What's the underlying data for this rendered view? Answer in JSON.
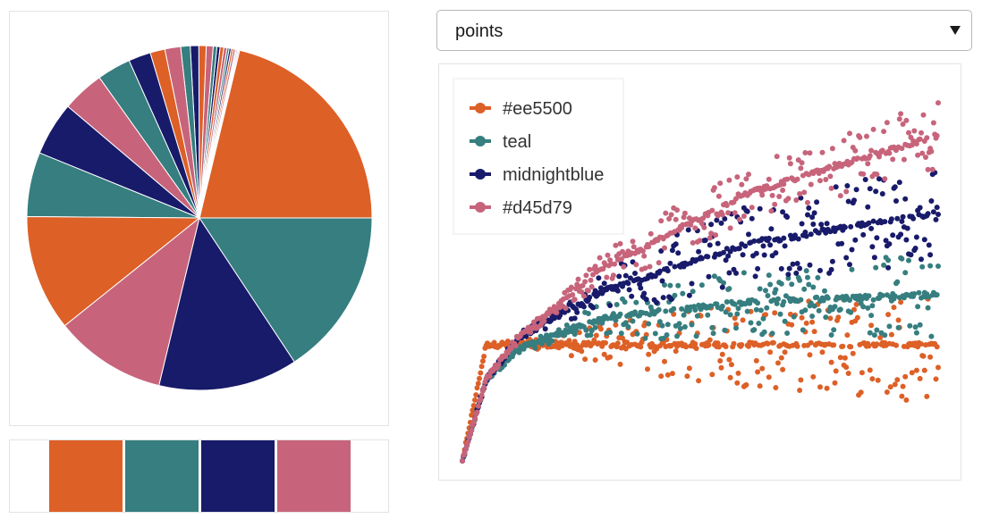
{
  "dropdown": {
    "selected": "points"
  },
  "palette": [
    {
      "name": "#ee5500",
      "color": "#dd6027"
    },
    {
      "name": "teal",
      "color": "#367e7f"
    },
    {
      "name": "midnightblue",
      "color": "#181a6a"
    },
    {
      "name": "#d45d79",
      "color": "#c7647b"
    }
  ],
  "chart_data": [
    {
      "type": "pie",
      "series": [
        {
          "name": "#ee5500",
          "values": [
            21.5,
            11.0,
            1.4,
            0.7,
            0.35,
            0.2,
            0.1
          ]
        },
        {
          "name": "teal",
          "values": [
            15.9,
            6.1,
            3.2,
            0.9,
            0.35,
            0.2,
            0.1
          ]
        },
        {
          "name": "midnightblue",
          "values": [
            13.2,
            5.1,
            2.1,
            0.8,
            0.3,
            0.2,
            0.1
          ]
        },
        {
          "name": "#d45d79",
          "values": [
            10.6,
            4.0,
            1.5,
            0.65,
            0.3,
            0.2,
            0.1
          ]
        }
      ],
      "slice_order": [
        [
          "#ee5500",
          0
        ],
        [
          "#d45d79",
          6
        ],
        [
          "#ee5500",
          6
        ],
        [
          "midnightblue",
          6
        ],
        [
          "teal",
          6
        ],
        [
          "#d45d79",
          5
        ],
        [
          "#ee5500",
          5
        ],
        [
          "midnightblue",
          5
        ],
        [
          "teal",
          5
        ],
        [
          "#d45d79",
          4
        ],
        [
          "#ee5500",
          4
        ],
        [
          "midnightblue",
          4
        ],
        [
          "teal",
          4
        ],
        [
          "#d45d79",
          3
        ],
        [
          "#ee5500",
          3
        ],
        [
          "midnightblue",
          3
        ],
        [
          "teal",
          3
        ],
        [
          "#d45d79",
          2
        ],
        [
          "#ee5500",
          2
        ],
        [
          "midnightblue",
          2
        ],
        [
          "teal",
          2
        ],
        [
          "#d45d79",
          1
        ],
        [
          "midnightblue",
          1
        ],
        [
          "teal",
          1
        ],
        [
          "#ee5500",
          1
        ],
        [
          "#d45d79",
          0
        ],
        [
          "midnightblue",
          0
        ],
        [
          "teal",
          0
        ]
      ]
    },
    {
      "type": "scatter",
      "legend_position": "top-left",
      "grid": false,
      "xlim": [
        0,
        100
      ],
      "ylim": [
        0,
        100
      ],
      "series": [
        {
          "name": "#ee5500",
          "trend": [
            [
              0,
              0
            ],
            [
              5,
              30
            ],
            [
              10,
              30
            ],
            [
              100,
              30
            ]
          ],
          "spread": [
            [
              0,
              0
            ],
            [
              20,
              2
            ],
            [
              40,
              9
            ],
            [
              100,
              15
            ]
          ]
        },
        {
          "name": "teal",
          "trend": [
            [
              0,
              0
            ],
            [
              5,
              21
            ],
            [
              12,
              29
            ],
            [
              30,
              37
            ],
            [
              60,
              41
            ],
            [
              100,
              43
            ]
          ],
          "spread": [
            [
              0,
              0
            ],
            [
              20,
              2
            ],
            [
              40,
              7
            ],
            [
              100,
              11
            ]
          ]
        },
        {
          "name": "midnightblue",
          "trend": [
            [
              0,
              0
            ],
            [
              5,
              21
            ],
            [
              12,
              32
            ],
            [
              30,
              44
            ],
            [
              60,
              56
            ],
            [
              100,
              64
            ]
          ],
          "spread": [
            [
              0,
              0
            ],
            [
              20,
              2
            ],
            [
              40,
              8
            ],
            [
              100,
              13
            ]
          ]
        },
        {
          "name": "#d45d79",
          "trend": [
            [
              0,
              0
            ],
            [
              5,
              21
            ],
            [
              12,
              32
            ],
            [
              30,
              50
            ],
            [
              60,
              69
            ],
            [
              100,
              84
            ]
          ],
          "spread": [
            [
              0,
              0
            ],
            [
              20,
              2
            ],
            [
              40,
              6
            ],
            [
              100,
              9
            ]
          ]
        }
      ],
      "points_per_series": 420,
      "x_range": [
        0,
        100
      ]
    }
  ]
}
